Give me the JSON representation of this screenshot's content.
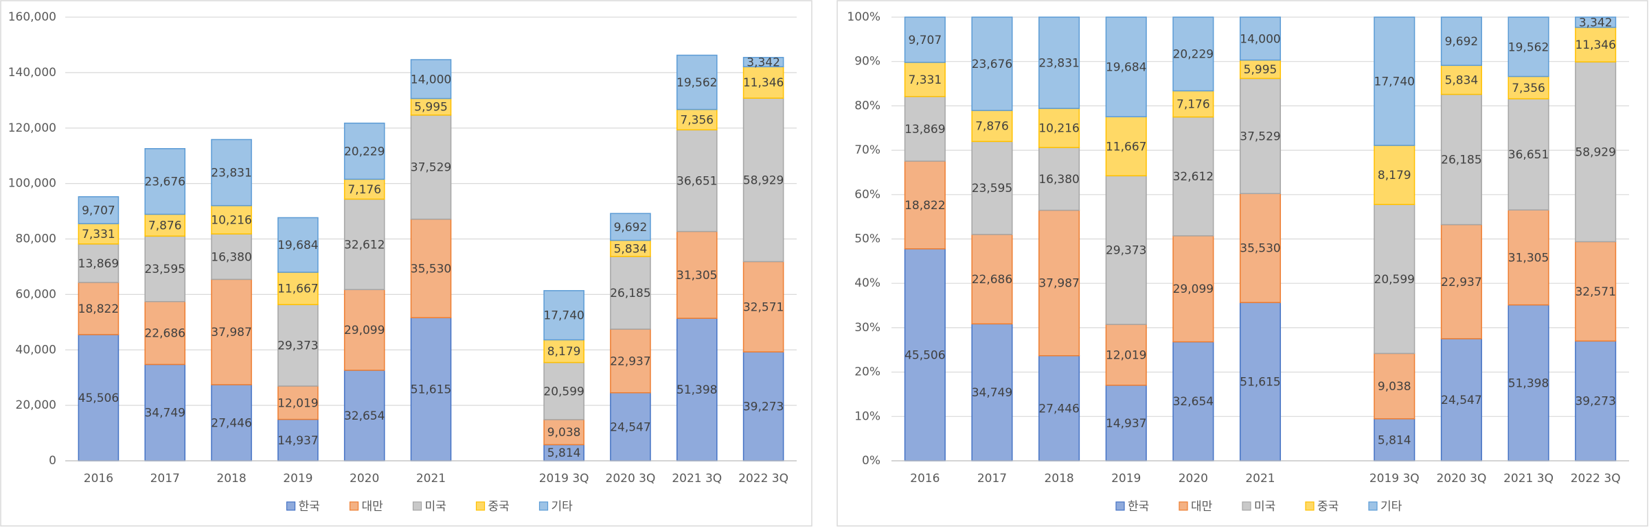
{
  "chart_data": [
    {
      "type": "bar",
      "stacked": "normal",
      "categories": [
        "2016",
        "2017",
        "2018",
        "2019",
        "2020",
        "2021",
        null,
        "2019 3Q",
        "2020 3Q",
        "2021 3Q",
        "2022 3Q"
      ],
      "series": [
        {
          "name": "한국",
          "color": "#8faadc",
          "values": [
            45506,
            34749,
            27446,
            14937,
            32654,
            51615,
            null,
            5814,
            24547,
            51398,
            39273
          ]
        },
        {
          "name": "대만",
          "color": "#f4b183",
          "values": [
            18822,
            22686,
            37987,
            12019,
            29099,
            35530,
            null,
            9038,
            22937,
            31305,
            32571
          ]
        },
        {
          "name": "미국",
          "color": "#c9c9c9",
          "values": [
            13869,
            23595,
            16380,
            29373,
            32612,
            37529,
            null,
            20599,
            26185,
            36651,
            58929
          ]
        },
        {
          "name": "중국",
          "color": "#ffd966",
          "values": [
            7331,
            7876,
            10216,
            11667,
            7176,
            5995,
            null,
            8179,
            5834,
            7356,
            11346
          ]
        },
        {
          "name": "기타",
          "color": "#9dc3e6",
          "values": [
            9707,
            23676,
            23831,
            19684,
            20229,
            14000,
            null,
            17740,
            9692,
            19562,
            3342
          ]
        }
      ],
      "value_labels": [
        [
          "45,506",
          "34,749",
          "27,446",
          "14,937",
          "32,654",
          "51,615",
          null,
          "5,814",
          "24,547",
          "51,398",
          "39,273"
        ],
        [
          "18,822",
          "22,686",
          "37,987",
          "12,019",
          "29,099",
          "35,530",
          null,
          "9,038",
          "22,937",
          "31,305",
          "32,571"
        ],
        [
          "13,869",
          "23,595",
          "16,380",
          "29,373",
          "32,612",
          "37,529",
          null,
          "20,599",
          "26,185",
          "36,651",
          "58,929"
        ],
        [
          "7,331",
          "7,876",
          "10,216",
          "11,667",
          "7,176",
          "5,995",
          null,
          "8,179",
          "5,834",
          "7,356",
          "11,346"
        ],
        [
          "9,707",
          "23,676",
          "23,831",
          "19,684",
          "20,229",
          "14,000",
          null,
          "17,740",
          "9,692",
          "19,562",
          "3,342"
        ]
      ],
      "ylim": [
        0,
        160000
      ],
      "yticks": [
        0,
        {
          "value": 20000,
          "label": "20,000"
        },
        {
          "value": 40000,
          "label": "40,000"
        },
        {
          "value": 60000,
          "label": "60,000"
        },
        {
          "value": 80000,
          "label": "80,000"
        },
        {
          "value": 100000,
          "label": "100,000"
        },
        {
          "value": 120000,
          "label": "120,000"
        },
        {
          "value": 140000,
          "label": "140,000"
        },
        {
          "value": 160000,
          "label": "160,000"
        }
      ],
      "grid": true,
      "legend": "bottom"
    },
    {
      "type": "bar",
      "stacked": "percent",
      "categories": [
        "2016",
        "2017",
        "2018",
        "2019",
        "2020",
        "2021",
        null,
        "2019 3Q",
        "2020 3Q",
        "2021 3Q",
        "2022 3Q"
      ],
      "series": [
        {
          "name": "한국",
          "color": "#8faadc",
          "values": [
            45506,
            34749,
            27446,
            14937,
            32654,
            51615,
            null,
            5814,
            24547,
            51398,
            39273
          ]
        },
        {
          "name": "대만",
          "color": "#f4b183",
          "values": [
            18822,
            22686,
            37987,
            12019,
            29099,
            35530,
            null,
            9038,
            22937,
            31305,
            32571
          ]
        },
        {
          "name": "미국",
          "color": "#c9c9c9",
          "values": [
            13869,
            23595,
            16380,
            29373,
            32612,
            37529,
            null,
            20599,
            26185,
            36651,
            58929
          ]
        },
        {
          "name": "중국",
          "color": "#ffd966",
          "values": [
            7331,
            7876,
            10216,
            11667,
            7176,
            5995,
            null,
            8179,
            5834,
            7356,
            11346
          ]
        },
        {
          "name": "기타",
          "color": "#9dc3e6",
          "values": [
            9707,
            23676,
            23831,
            19684,
            20229,
            14000,
            null,
            17740,
            9692,
            19562,
            3342
          ]
        }
      ],
      "value_labels": [
        [
          "45,506",
          "34,749",
          "27,446",
          "14,937",
          "32,654",
          "51,615",
          null,
          "5,814",
          "24,547",
          "51,398",
          "39,273"
        ],
        [
          "18,822",
          "22,686",
          "37,987",
          "12,019",
          "29,099",
          "35,530",
          null,
          "9,038",
          "22,937",
          "31,305",
          "32,571"
        ],
        [
          "13,869",
          "23,595",
          "16,380",
          "29,373",
          "32,612",
          "37,529",
          null,
          "20,599",
          "26,185",
          "36,651",
          "58,929"
        ],
        [
          "7,331",
          "7,876",
          "10,216",
          "11,667",
          "7,176",
          "5,995",
          null,
          "8,179",
          "5,834",
          "7,356",
          "11,346"
        ],
        [
          "9,707",
          "23,676",
          "23,831",
          "19,684",
          "20,229",
          "14,000",
          null,
          "17,740",
          "9,692",
          "19,562",
          "3,342"
        ]
      ],
      "ylim": [
        0,
        100
      ],
      "yticks": [
        {
          "value": 0,
          "label": "0%"
        },
        {
          "value": 10,
          "label": "10%"
        },
        {
          "value": 20,
          "label": "20%"
        },
        {
          "value": 30,
          "label": "30%"
        },
        {
          "value": 40,
          "label": "40%"
        },
        {
          "value": 50,
          "label": "50%"
        },
        {
          "value": 60,
          "label": "60%"
        },
        {
          "value": 70,
          "label": "70%"
        },
        {
          "value": 80,
          "label": "80%"
        },
        {
          "value": 90,
          "label": "90%"
        },
        {
          "value": 100,
          "label": "100%"
        }
      ],
      "grid": true,
      "legend": "bottom"
    }
  ]
}
